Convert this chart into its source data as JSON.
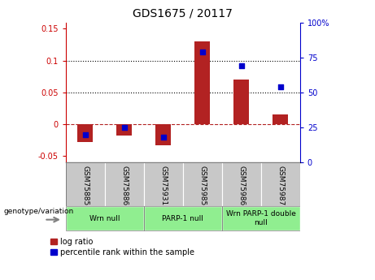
{
  "title": "GDS1675 / 20117",
  "samples": [
    "GSM75885",
    "GSM75886",
    "GSM75931",
    "GSM75985",
    "GSM75986",
    "GSM75987"
  ],
  "log_ratio": [
    -0.028,
    -0.018,
    -0.033,
    0.13,
    0.07,
    0.015
  ],
  "percentile_rank_pct": [
    20,
    25,
    18,
    79,
    69,
    54
  ],
  "ylim_left": [
    -0.06,
    0.16
  ],
  "ylim_right": [
    0,
    100
  ],
  "yticks_left": [
    -0.05,
    0,
    0.05,
    0.1,
    0.15
  ],
  "ytick_labels_left": [
    "-0.05",
    "0",
    "0.05",
    "0.1",
    "0.15"
  ],
  "yticks_right": [
    0,
    25,
    50,
    75,
    100
  ],
  "ytick_labels_right": [
    "0",
    "25",
    "50",
    "75",
    "100%"
  ],
  "bar_color": "#B22222",
  "dot_color": "#0000CC",
  "zero_line_color": "#B22222",
  "grid_lines": [
    0.05,
    0.1
  ],
  "groups": [
    {
      "label": "Wrn null",
      "start": 0,
      "end": 2,
      "color": "#90EE90"
    },
    {
      "label": "PARP-1 null",
      "start": 2,
      "end": 4,
      "color": "#90EE90"
    },
    {
      "label": "Wrn PARP-1 double\nnull",
      "start": 4,
      "end": 6,
      "color": "#90EE90"
    }
  ],
  "legend_log_ratio": "log ratio",
  "legend_percentile": "percentile rank within the sample",
  "background_color": "#ffffff",
  "plot_bg_color": "#ffffff",
  "tick_label_color_left": "#CC0000",
  "tick_label_color_right": "#0000CC",
  "sample_bg_color": "#C8C8C8",
  "bar_width": 0.4
}
